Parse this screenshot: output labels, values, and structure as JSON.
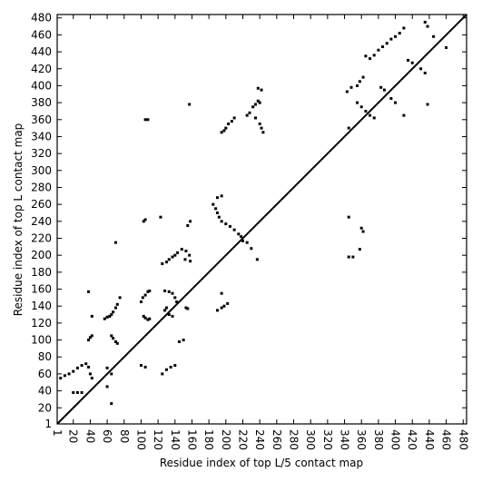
{
  "chart_data": {
    "type": "scatter",
    "x_label": "Residue index of top L/5 contact map",
    "y_label": "Residue index of top L contact map",
    "color": "#000000",
    "xlim": [
      1,
      484
    ],
    "ylim": [
      1,
      484
    ],
    "xticks": [
      1,
      20,
      40,
      60,
      80,
      100,
      120,
      140,
      160,
      180,
      200,
      220,
      240,
      260,
      280,
      300,
      320,
      340,
      360,
      380,
      400,
      420,
      440,
      460,
      480
    ],
    "yticks": [
      1,
      20,
      40,
      60,
      80,
      100,
      120,
      140,
      160,
      180,
      200,
      220,
      240,
      260,
      280,
      300,
      320,
      340,
      360,
      380,
      400,
      420,
      440,
      460,
      480
    ],
    "x": [
      5,
      10,
      15,
      20,
      25,
      30,
      35,
      38,
      40,
      42,
      20,
      25,
      30,
      38,
      40,
      42,
      38,
      42,
      57,
      60,
      63,
      65,
      67,
      70,
      72,
      75,
      70,
      60,
      65,
      60,
      65,
      65,
      67,
      70,
      72,
      100,
      102,
      105,
      108,
      110,
      103,
      105,
      108,
      110,
      100,
      105,
      103,
      105,
      105,
      108,
      123,
      125,
      130,
      133,
      137,
      140,
      143,
      148,
      153,
      157,
      158,
      152,
      128,
      133,
      137,
      140,
      142,
      128,
      130,
      133,
      137,
      125,
      130,
      135,
      140,
      145,
      150,
      153,
      155,
      155,
      158,
      157,
      185,
      188,
      190,
      192,
      195,
      200,
      205,
      210,
      215,
      218,
      220,
      225,
      230,
      237,
      190,
      195,
      190,
      195,
      198,
      202,
      195,
      195,
      198,
      200,
      203,
      207,
      210,
      225,
      228,
      232,
      235,
      238,
      240,
      238,
      242,
      235,
      240,
      242,
      244,
      345,
      343,
      348,
      355,
      358,
      362,
      365,
      370,
      375,
      380,
      385,
      390,
      395,
      400,
      405,
      410,
      415,
      420,
      430,
      435,
      355,
      360,
      365,
      370,
      375,
      383,
      387,
      395,
      400,
      410,
      438,
      435,
      438,
      445,
      460,
      345,
      345,
      350,
      358,
      360,
      362
    ],
    "y": [
      55,
      58,
      60,
      63,
      67,
      70,
      72,
      68,
      60,
      55,
      38,
      38,
      38,
      100,
      103,
      105,
      157,
      128,
      125,
      127,
      128,
      130,
      133,
      138,
      142,
      150,
      215,
      67,
      60,
      45,
      25,
      105,
      102,
      98,
      96,
      145,
      150,
      153,
      157,
      158,
      128,
      126,
      124,
      125,
      70,
      68,
      240,
      242,
      360,
      360,
      245,
      190,
      192,
      195,
      198,
      200,
      203,
      207,
      205,
      200,
      193,
      195,
      158,
      157,
      155,
      150,
      145,
      135,
      138,
      130,
      128,
      60,
      65,
      68,
      70,
      98,
      100,
      138,
      137,
      235,
      240,
      378,
      260,
      255,
      250,
      245,
      240,
      237,
      234,
      230,
      225,
      222,
      217,
      215,
      208,
      195,
      268,
      270,
      135,
      138,
      140,
      143,
      155,
      345,
      347,
      350,
      355,
      358,
      362,
      365,
      368,
      375,
      378,
      382,
      380,
      397,
      395,
      362,
      355,
      350,
      345,
      350,
      393,
      398,
      400,
      405,
      410,
      435,
      432,
      436,
      442,
      446,
      450,
      455,
      458,
      462,
      468,
      430,
      427,
      420,
      415,
      380,
      375,
      370,
      365,
      362,
      398,
      395,
      385,
      380,
      365,
      378,
      475,
      470,
      458,
      445,
      245,
      198,
      198,
      207,
      232,
      228
    ]
  }
}
